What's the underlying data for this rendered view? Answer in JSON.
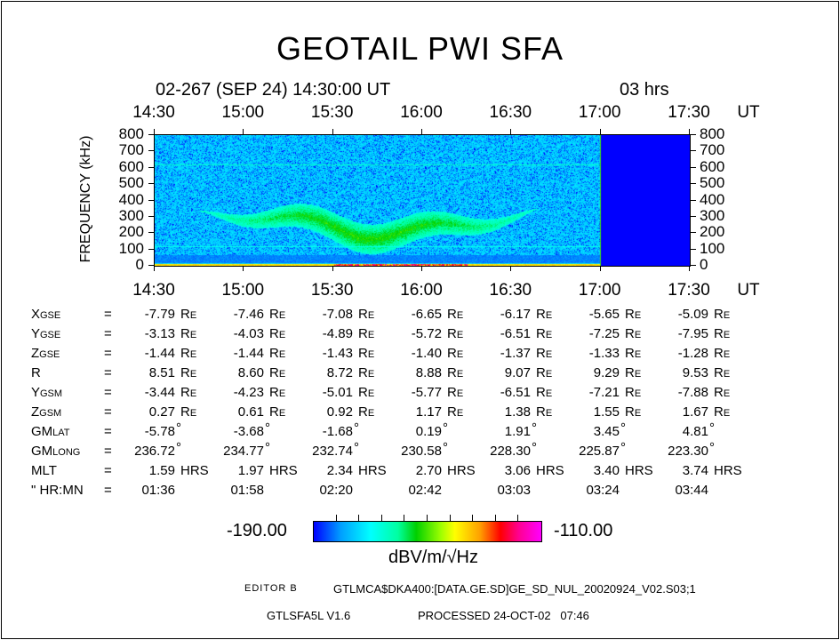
{
  "header": {
    "title": "GEOTAIL PWI SFA",
    "start_label": "02-267 (SEP 24) 14:30:00 UT",
    "duration_label": "03 hrs"
  },
  "chart_data": {
    "type": "heatmap",
    "title": "GEOTAIL PWI SFA",
    "xlabel": "UT",
    "ylabel": "FREQUENCY (kHz)",
    "x_ticks": [
      "14:30",
      "15:00",
      "15:30",
      "16:00",
      "16:30",
      "17:00",
      "17:30"
    ],
    "x_range": [
      "14:30",
      "17:30"
    ],
    "y_ticks": [
      800,
      700,
      600,
      500,
      400,
      300,
      200,
      100,
      0
    ],
    "ylim": [
      0,
      800
    ],
    "data_end": "17:00",
    "colorbar": {
      "min_label": "-190.00",
      "max_label": "-110.00",
      "min": -190,
      "max": -110,
      "unit": "dBV/m/√Hz"
    },
    "features": [
      {
        "name": "background noise",
        "level_db": -175
      },
      {
        "name": "emission band",
        "freq_khz": [
          150,
          420
        ],
        "time": [
          "14:50",
          "16:40"
        ],
        "level_db": -155
      },
      {
        "name": "low-frequency band",
        "freq_khz": [
          0,
          40
        ],
        "level_db": -185
      }
    ]
  },
  "ephemeris": {
    "rows": [
      {
        "label": "Xgse",
        "unit": "Re",
        "values": [
          "-7.79",
          "-7.46",
          "-7.08",
          "-6.65",
          "-6.17",
          "-5.65",
          "-5.09"
        ]
      },
      {
        "label": "Ygse",
        "unit": "Re",
        "values": [
          "-3.13",
          "-4.03",
          "-4.89",
          "-5.72",
          "-6.51",
          "-7.25",
          "-7.95"
        ]
      },
      {
        "label": "Zgse",
        "unit": "Re",
        "values": [
          "-1.44",
          "-1.44",
          "-1.43",
          "-1.40",
          "-1.37",
          "-1.33",
          "-1.28"
        ]
      },
      {
        "label": "R",
        "unit": "Re",
        "values": [
          "8.51",
          "8.60",
          "8.72",
          "8.88",
          "9.07",
          "9.29",
          "9.53"
        ]
      },
      {
        "label": "Ygsm",
        "unit": "Re",
        "values": [
          "-3.44",
          "-4.23",
          "-5.01",
          "-5.77",
          "-6.51",
          "-7.21",
          "-7.88"
        ]
      },
      {
        "label": "Zgsm",
        "unit": "Re",
        "values": [
          "0.27",
          "0.61",
          "0.92",
          "1.17",
          "1.38",
          "1.55",
          "1.67"
        ]
      },
      {
        "label": "GMlat",
        "unit": "°",
        "values": [
          "-5.78",
          "-3.68",
          "-1.68",
          "0.19",
          "1.91",
          "3.45",
          "4.81"
        ]
      },
      {
        "label": "GMlong",
        "unit": "°",
        "values": [
          "236.72",
          "234.77",
          "232.74",
          "230.58",
          "228.30",
          "225.87",
          "223.30"
        ]
      },
      {
        "label": "MLT",
        "unit": "HRS",
        "values": [
          "1.59",
          "1.97",
          "2.34",
          "2.70",
          "3.06",
          "3.40",
          "3.74"
        ]
      },
      {
        "label": "\" HR:MN",
        "unit": "",
        "values": [
          "01:36",
          "01:58",
          "02:20",
          "02:42",
          "03:03",
          "03:24",
          "03:44"
        ]
      }
    ],
    "equals": "="
  },
  "footer": {
    "editor": "EDITOR B",
    "file": "GTLMCA$DKA400:[DATA.GE.SD]GE_SD_NUL_20020924_V02.S03;1",
    "program": "GTLSFA5L V1.6",
    "processed": "PROCESSED 24-OCT-02   07:46"
  }
}
